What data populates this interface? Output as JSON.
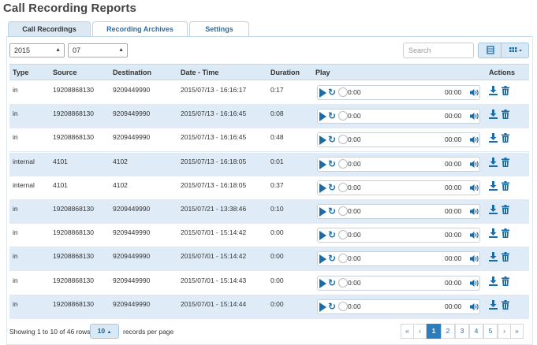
{
  "page_title": "Call Recording Reports",
  "tabs": [
    {
      "label": "Call Recordings",
      "active": true
    },
    {
      "label": "Recording Archives",
      "active": false
    },
    {
      "label": "Settings",
      "active": false
    }
  ],
  "filters": {
    "year": "2015",
    "month": "07"
  },
  "search": {
    "placeholder": "Search"
  },
  "toolbar": {
    "refresh_icon": "list-icon",
    "columns_icon": "grid-columns-icon"
  },
  "table": {
    "columns": [
      "Type",
      "Source",
      "Destination",
      "Date - Time",
      "Duration",
      "Play",
      "Actions"
    ],
    "rows": [
      {
        "type": "in",
        "source": "19208868130",
        "destination": "9209449990",
        "datetime": "2015/07/13 - 16:16:17",
        "duration": "0:17",
        "time_start": "0:00",
        "time_end": "00:00"
      },
      {
        "type": "in",
        "source": "19208868130",
        "destination": "9209449990",
        "datetime": "2015/07/13 - 16:16:45",
        "duration": "0:08",
        "time_start": "0:00",
        "time_end": "00:00"
      },
      {
        "type": "in",
        "source": "19208868130",
        "destination": "9209449990",
        "datetime": "2015/07/13 - 16:16:45",
        "duration": "0:48",
        "time_start": "0:00",
        "time_end": "00:00"
      },
      {
        "type": "internal",
        "source": "4101",
        "destination": "4102",
        "datetime": "2015/07/13 - 16:18:05",
        "duration": "0:01",
        "time_start": "0:00",
        "time_end": "00:00"
      },
      {
        "type": "internal",
        "source": "4101",
        "destination": "4102",
        "datetime": "2015/07/13 - 16:18:05",
        "duration": "0:37",
        "time_start": "0:00",
        "time_end": "00:00"
      },
      {
        "type": "in",
        "source": "19208868130",
        "destination": "9209449990",
        "datetime": "2015/07/21 - 13:38:46",
        "duration": "0:10",
        "time_start": "0:00",
        "time_end": "00:00"
      },
      {
        "type": "in",
        "source": "19208868130",
        "destination": "9209449990",
        "datetime": "2015/07/01 - 15:14:42",
        "duration": "0:00",
        "time_start": "0:00",
        "time_end": "00:00"
      },
      {
        "type": "in",
        "source": "19208868130",
        "destination": "9209449990",
        "datetime": "2015/07/01 - 15:14:42",
        "duration": "0:00",
        "time_start": "0:00",
        "time_end": "00:00"
      },
      {
        "type": "in",
        "source": "19208868130",
        "destination": "9209449990",
        "datetime": "2015/07/01 - 15:14:43",
        "duration": "0:00",
        "time_start": "0:00",
        "time_end": "00:00"
      },
      {
        "type": "in",
        "source": "19208868130",
        "destination": "9209449990",
        "datetime": "2015/07/01 - 15:14:44",
        "duration": "0:00",
        "time_start": "0:00",
        "time_end": "00:00"
      }
    ]
  },
  "footer": {
    "showing": "Showing 1 to 10 of 46 rows",
    "page_size": "10",
    "per_page_label": "records per page"
  },
  "pagination": {
    "first": "«",
    "prev": "‹",
    "pages": [
      "1",
      "2",
      "3",
      "4",
      "5"
    ],
    "active_page": "1",
    "next": "›",
    "last": "»"
  },
  "colors": {
    "accent": "#2a7ec0",
    "header_bg": "#dbeaf5",
    "striped_row": "#dfecf7",
    "icon": "#1a6ca8"
  }
}
